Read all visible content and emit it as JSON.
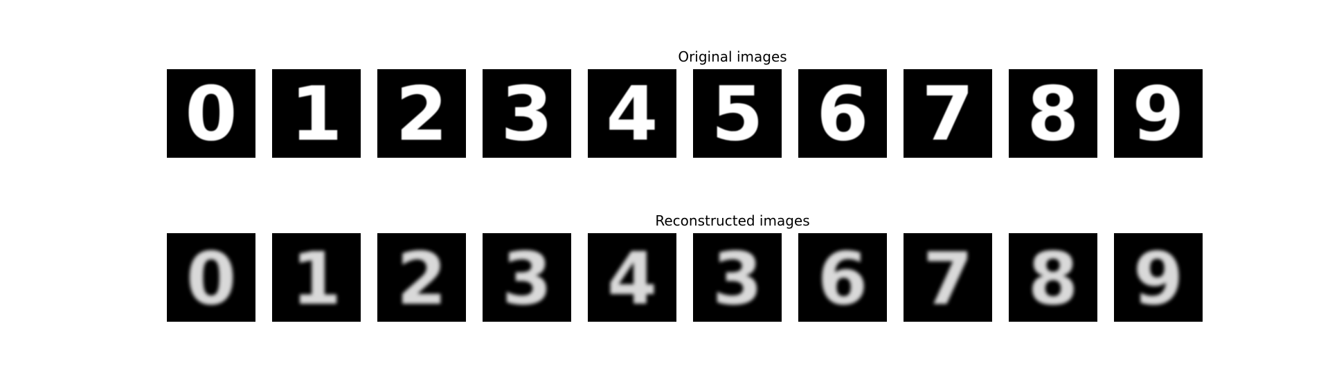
{
  "figure": {
    "original_title": "Original images",
    "reconstructed_title": "Reconstructed images"
  },
  "original_digits": [
    "0",
    "1",
    "2",
    "3",
    "4",
    "5",
    "6",
    "7",
    "8",
    "9"
  ],
  "reconstructed_digits": [
    "0",
    "1",
    "2",
    "3",
    "4",
    "3",
    "6",
    "7",
    "8",
    "9"
  ],
  "colors": {
    "tile_background": "#000000",
    "digit_stroke": "#ffffff"
  }
}
